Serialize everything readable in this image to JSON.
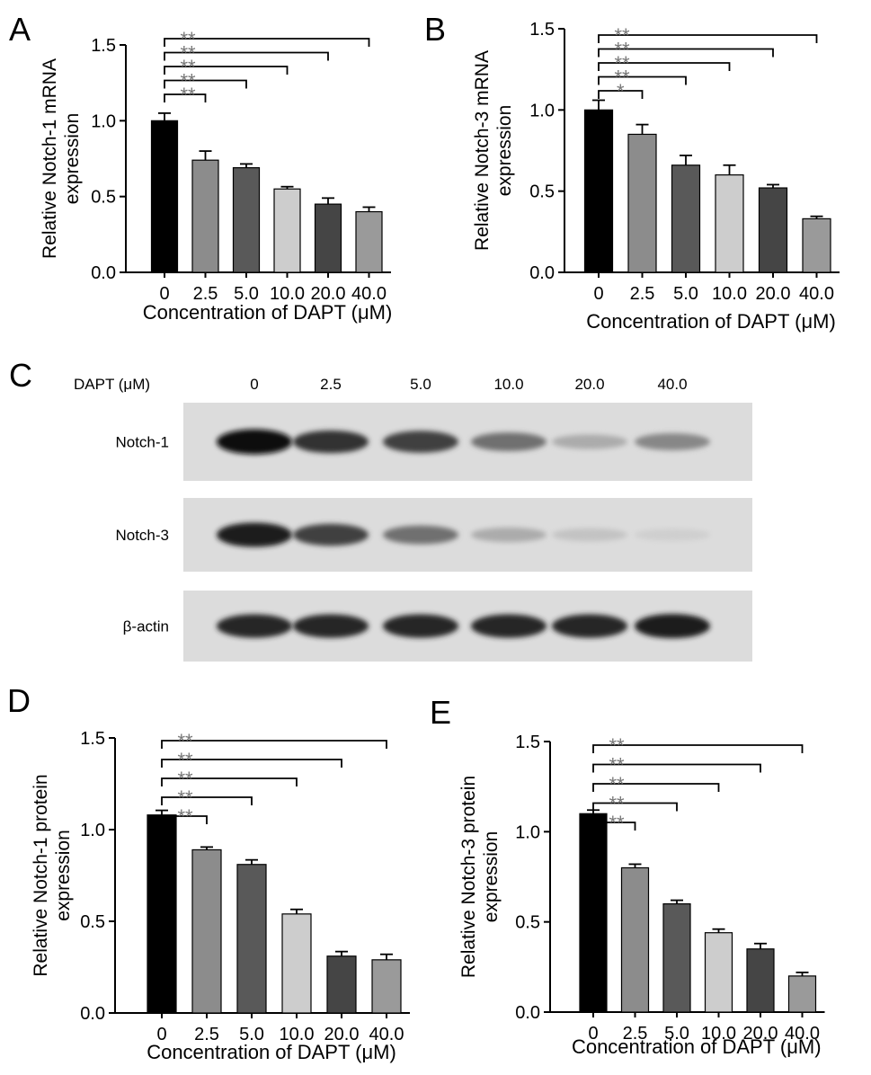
{
  "figure": {
    "panels": {
      "A": "A",
      "B": "B",
      "C": "C",
      "D": "D",
      "E": "E"
    }
  },
  "chart_data": [
    {
      "panel": "A",
      "type": "bar",
      "categories": [
        "0",
        "2.5",
        "5.0",
        "10.0",
        "20.0",
        "40.0"
      ],
      "values": [
        1.0,
        0.74,
        0.69,
        0.55,
        0.45,
        0.4
      ],
      "errors": [
        0.05,
        0.06,
        0.025,
        0.015,
        0.04,
        0.03
      ],
      "colors": [
        "#000000",
        "#8c8c8c",
        "#595959",
        "#cdcdcd",
        "#454545",
        "#9a9a9a"
      ],
      "ylabel": [
        "Relative Notch-1 mRNA",
        "expression"
      ],
      "xlabel": "Concentration of DAPT (μM)",
      "ylim": [
        0,
        1.5
      ],
      "yticks": [
        "0.0",
        "0.5",
        "1.0",
        "1.5"
      ],
      "significance": [
        {
          "from": 0,
          "to": 1,
          "label": "**"
        },
        {
          "from": 0,
          "to": 2,
          "label": "**"
        },
        {
          "from": 0,
          "to": 3,
          "label": "**"
        },
        {
          "from": 0,
          "to": 4,
          "label": "**"
        },
        {
          "from": 0,
          "to": 5,
          "label": "**"
        }
      ]
    },
    {
      "panel": "B",
      "type": "bar",
      "categories": [
        "0",
        "2.5",
        "5.0",
        "10.0",
        "20.0",
        "40.0"
      ],
      "values": [
        1.0,
        0.85,
        0.66,
        0.6,
        0.52,
        0.33
      ],
      "errors": [
        0.06,
        0.06,
        0.06,
        0.06,
        0.02,
        0.015
      ],
      "colors": [
        "#000000",
        "#8c8c8c",
        "#595959",
        "#cdcdcd",
        "#454545",
        "#9a9a9a"
      ],
      "ylabel": [
        "Relative Notch-3 mRNA",
        "expression"
      ],
      "xlabel": "Concentration of DAPT (μM)",
      "ylim": [
        0,
        1.5
      ],
      "yticks": [
        "0.0",
        "0.5",
        "1.0",
        "1.5"
      ],
      "significance": [
        {
          "from": 0,
          "to": 1,
          "label": "*"
        },
        {
          "from": 0,
          "to": 2,
          "label": "**"
        },
        {
          "from": 0,
          "to": 3,
          "label": "**"
        },
        {
          "from": 0,
          "to": 4,
          "label": "**"
        },
        {
          "from": 0,
          "to": 5,
          "label": "**"
        }
      ]
    },
    {
      "panel": "D",
      "type": "bar",
      "categories": [
        "0",
        "2.5",
        "5.0",
        "10.0",
        "20.0",
        "40.0"
      ],
      "values": [
        1.08,
        0.89,
        0.81,
        0.54,
        0.31,
        0.29
      ],
      "errors": [
        0.025,
        0.015,
        0.025,
        0.025,
        0.025,
        0.03
      ],
      "colors": [
        "#000000",
        "#8c8c8c",
        "#595959",
        "#cdcdcd",
        "#454545",
        "#9a9a9a"
      ],
      "ylabel": [
        "Relative Notch-1 protein",
        "expression"
      ],
      "xlabel": "Concentration of DAPT (μM)",
      "ylim": [
        0,
        1.5
      ],
      "yticks": [
        "0.0",
        "0.5",
        "1.0",
        "1.5"
      ],
      "significance": [
        {
          "from": 0,
          "to": 1,
          "label": "**"
        },
        {
          "from": 0,
          "to": 2,
          "label": "**"
        },
        {
          "from": 0,
          "to": 3,
          "label": "**"
        },
        {
          "from": 0,
          "to": 4,
          "label": "**"
        },
        {
          "from": 0,
          "to": 5,
          "label": "**"
        }
      ]
    },
    {
      "panel": "E",
      "type": "bar",
      "categories": [
        "0",
        "2.5",
        "5.0",
        "10.0",
        "20.0",
        "40.0"
      ],
      "values": [
        1.1,
        0.8,
        0.6,
        0.44,
        0.35,
        0.2
      ],
      "errors": [
        0.02,
        0.02,
        0.02,
        0.02,
        0.03,
        0.02
      ],
      "colors": [
        "#000000",
        "#8c8c8c",
        "#595959",
        "#cdcdcd",
        "#454545",
        "#9a9a9a"
      ],
      "ylabel": [
        "Relative Notch-3 protein",
        "expression"
      ],
      "xlabel": "Concentration of DAPT (μM)",
      "ylim": [
        0,
        1.5
      ],
      "yticks": [
        "0.0",
        "0.5",
        "1.0",
        "1.5"
      ],
      "significance": [
        {
          "from": 0,
          "to": 1,
          "label": "**"
        },
        {
          "from": 0,
          "to": 2,
          "label": "**"
        },
        {
          "from": 0,
          "to": 3,
          "label": "**"
        },
        {
          "from": 0,
          "to": 4,
          "label": "**"
        },
        {
          "from": 0,
          "to": 5,
          "label": "**"
        }
      ]
    }
  ],
  "blot": {
    "header_label": "DAPT (μM)",
    "lanes": [
      "0",
      "2.5",
      "5.0",
      "10.0",
      "20.0",
      "40.0"
    ],
    "rows": [
      {
        "label": "Notch-1",
        "intensity": [
          1.0,
          0.85,
          0.8,
          0.6,
          0.35,
          0.5
        ]
      },
      {
        "label": "Notch-3",
        "intensity": [
          0.95,
          0.8,
          0.6,
          0.35,
          0.25,
          0.2
        ]
      },
      {
        "label": "β-actin",
        "intensity": [
          0.9,
          0.9,
          0.9,
          0.9,
          0.9,
          0.95
        ]
      }
    ]
  }
}
